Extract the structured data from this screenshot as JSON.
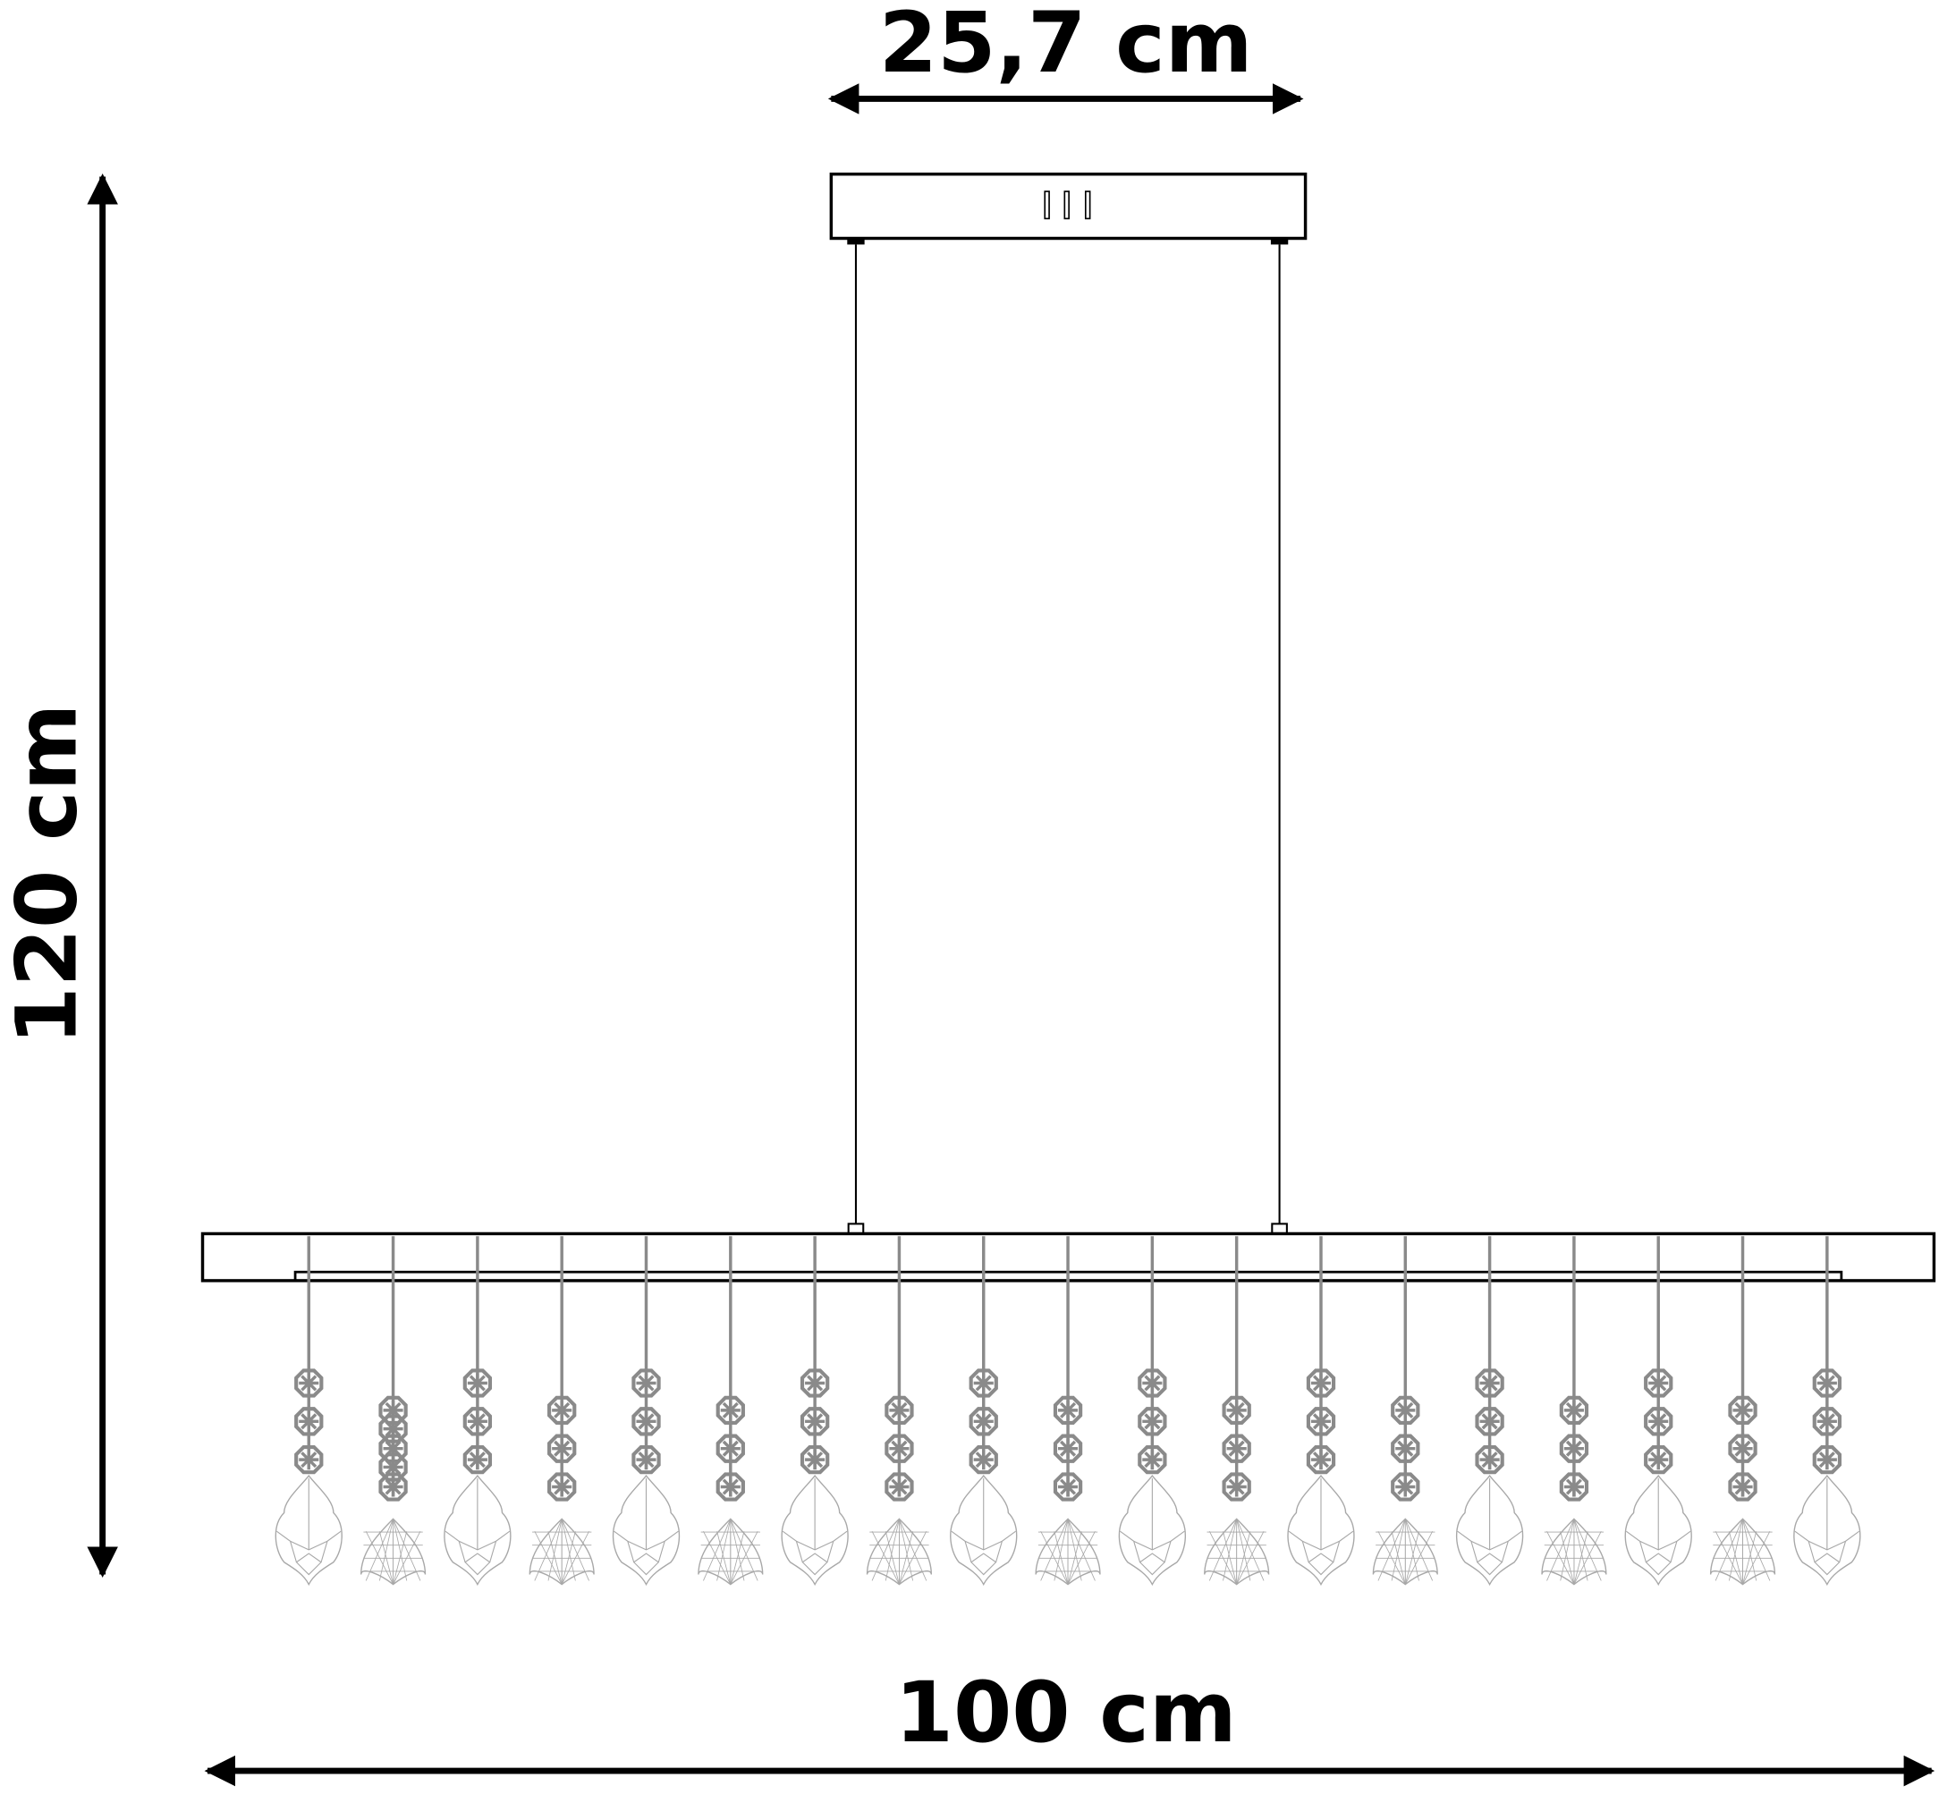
{
  "dimensions": {
    "top_width": "25,7 cm",
    "height": "120 cm",
    "length": "100 cm"
  },
  "pendants": {
    "styles": [
      "pointed",
      "round",
      "pointed",
      "round",
      "pointed",
      "round",
      "pointed",
      "round",
      "pointed",
      "round",
      "pointed",
      "round",
      "pointed",
      "round",
      "pointed",
      "round",
      "pointed",
      "round",
      "pointed"
    ]
  },
  "colors": {
    "line": "#000000",
    "crystal": "#8a8a8a",
    "crystal_outline": "#a8a8a8"
  }
}
